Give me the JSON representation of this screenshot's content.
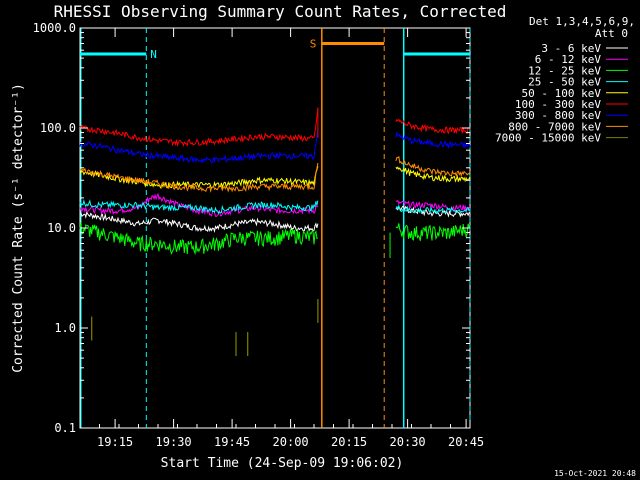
{
  "chart_data": {
    "type": "line",
    "title": "RHESSI Observing Summary Count Rates, Corrected",
    "xlabel": "Start Time (24-Sep-09 19:06:02)",
    "ylabel": "Corrected Count Rate (s⁻¹ detector⁻¹)",
    "yscale": "log",
    "ylim": [
      0.1,
      1000.0
    ],
    "xlim_minutes": [
      0.0,
      100.0
    ],
    "ytick_labels": [
      "0.1",
      "1.0",
      "10.0",
      "100.0",
      "1000.0"
    ],
    "ytick_values": [
      0.1,
      1.0,
      10.0,
      100.0,
      1000.0
    ],
    "xtick_labels": [
      "19:15",
      "19:30",
      "19:45",
      "20:00",
      "20:15",
      "20:30",
      "20:45"
    ],
    "xtick_minutes": [
      9,
      24,
      39,
      54,
      69,
      84,
      99
    ],
    "legend_header": "Det 1,3,4,5,6,9,",
    "legend_header2": "Att 0",
    "legend_position": "right",
    "series": [
      {
        "name": "3 - 6 keV",
        "color": "#ffffff",
        "seg1": [
          [
            0,
            14
          ],
          [
            5,
            13
          ],
          [
            10,
            12
          ],
          [
            15,
            11
          ],
          [
            20,
            12
          ],
          [
            25,
            11
          ],
          [
            30,
            10
          ],
          [
            35,
            10
          ],
          [
            40,
            11
          ],
          [
            45,
            11.5
          ],
          [
            50,
            11
          ],
          [
            55,
            10
          ],
          [
            60,
            10
          ],
          [
            61,
            11
          ]
        ],
        "seg2": [
          [
            81,
            16
          ],
          [
            85,
            15
          ],
          [
            90,
            14
          ],
          [
            95,
            14
          ],
          [
            100,
            14
          ]
        ]
      },
      {
        "name": "6 - 12 keV",
        "color": "#ff00ff",
        "seg1": [
          [
            0,
            16
          ],
          [
            5,
            15
          ],
          [
            10,
            15
          ],
          [
            15,
            16
          ],
          [
            18,
            20
          ],
          [
            20,
            21
          ],
          [
            25,
            17
          ],
          [
            30,
            15
          ],
          [
            35,
            14
          ],
          [
            40,
            15
          ],
          [
            45,
            16
          ],
          [
            50,
            15
          ],
          [
            55,
            15
          ],
          [
            60,
            15
          ],
          [
            61,
            17
          ]
        ],
        "seg2": [
          [
            81,
            18
          ],
          [
            85,
            17
          ],
          [
            90,
            17
          ],
          [
            95,
            16
          ],
          [
            100,
            16
          ]
        ]
      },
      {
        "name": "12 - 25 keV",
        "color": "#00ff00",
        "seg1": [
          [
            0,
            10
          ],
          [
            5,
            9
          ],
          [
            10,
            8
          ],
          [
            15,
            7
          ],
          [
            20,
            7
          ],
          [
            25,
            6.5
          ],
          [
            30,
            6.5
          ],
          [
            35,
            7
          ],
          [
            40,
            8
          ],
          [
            45,
            8
          ],
          [
            50,
            8
          ],
          [
            55,
            8.5
          ],
          [
            60,
            8
          ],
          [
            61,
            9
          ]
        ],
        "seg2": [
          [
            81,
            10
          ],
          [
            85,
            9
          ],
          [
            90,
            9
          ],
          [
            95,
            9
          ],
          [
            100,
            10
          ]
        ]
      },
      {
        "name": "25 - 50 keV",
        "color": "#00ffff",
        "seg1": [
          [
            0,
            18
          ],
          [
            5,
            17
          ],
          [
            10,
            17
          ],
          [
            15,
            17
          ],
          [
            20,
            16
          ],
          [
            25,
            16
          ],
          [
            30,
            16
          ],
          [
            35,
            15
          ],
          [
            40,
            16
          ],
          [
            45,
            17
          ],
          [
            50,
            17
          ],
          [
            55,
            16
          ],
          [
            60,
            16
          ],
          [
            61,
            19
          ]
        ],
        "seg2": [
          [
            81,
            16
          ],
          [
            85,
            15
          ],
          [
            90,
            15
          ],
          [
            95,
            15
          ],
          [
            100,
            15
          ]
        ]
      },
      {
        "name": "50 - 100 keV",
        "color": "#ffff00",
        "seg1": [
          [
            0,
            37
          ],
          [
            5,
            34
          ],
          [
            10,
            31
          ],
          [
            15,
            29
          ],
          [
            20,
            27
          ],
          [
            25,
            27
          ],
          [
            30,
            27
          ],
          [
            35,
            27
          ],
          [
            40,
            28
          ],
          [
            45,
            30
          ],
          [
            50,
            30
          ],
          [
            55,
            29
          ],
          [
            60,
            28
          ],
          [
            61,
            40
          ]
        ],
        "seg2": [
          [
            81,
            42
          ],
          [
            85,
            35
          ],
          [
            90,
            32
          ],
          [
            95,
            31
          ],
          [
            100,
            31
          ]
        ]
      },
      {
        "name": "100 - 300 keV",
        "color": "#ff0000",
        "seg1": [
          [
            0,
            100
          ],
          [
            5,
            95
          ],
          [
            10,
            88
          ],
          [
            15,
            80
          ],
          [
            20,
            75
          ],
          [
            25,
            72
          ],
          [
            30,
            72
          ],
          [
            35,
            74
          ],
          [
            40,
            78
          ],
          [
            45,
            82
          ],
          [
            50,
            82
          ],
          [
            55,
            80
          ],
          [
            60,
            78
          ],
          [
            61,
            150
          ]
        ],
        "seg2": [
          [
            81,
            120
          ],
          [
            85,
            105
          ],
          [
            90,
            97
          ],
          [
            95,
            95
          ],
          [
            100,
            95
          ]
        ]
      },
      {
        "name": "300 - 800 keV",
        "color": "#0000ff",
        "seg1": [
          [
            0,
            70
          ],
          [
            5,
            66
          ],
          [
            10,
            60
          ],
          [
            15,
            55
          ],
          [
            20,
            52
          ],
          [
            25,
            50
          ],
          [
            30,
            48
          ],
          [
            35,
            48
          ],
          [
            40,
            50
          ],
          [
            45,
            52
          ],
          [
            50,
            53
          ],
          [
            55,
            53
          ],
          [
            60,
            52
          ],
          [
            61,
            100
          ]
        ],
        "seg2": [
          [
            81,
            85
          ],
          [
            85,
            75
          ],
          [
            90,
            70
          ],
          [
            95,
            68
          ],
          [
            100,
            67
          ]
        ]
      },
      {
        "name": "800 - 7000 keV",
        "color": "#ff8c00",
        "seg1": [
          [
            0,
            38
          ],
          [
            5,
            35
          ],
          [
            10,
            32
          ],
          [
            15,
            30
          ],
          [
            20,
            28
          ],
          [
            25,
            26
          ],
          [
            30,
            25
          ],
          [
            35,
            25
          ],
          [
            40,
            25
          ],
          [
            45,
            26
          ],
          [
            50,
            26
          ],
          [
            55,
            26
          ],
          [
            60,
            26
          ],
          [
            61,
            45
          ]
        ],
        "seg2": [
          [
            81,
            50
          ],
          [
            85,
            42
          ],
          [
            90,
            37
          ],
          [
            95,
            35
          ],
          [
            100,
            35
          ]
        ]
      },
      {
        "name": "7000 - 15000 keV",
        "color": "#808000",
        "seg1": [],
        "seg2": []
      }
    ],
    "annotations": [
      {
        "label": "N",
        "color": "#00ffff",
        "bar_level": 550,
        "x_start": 0,
        "x_end": 17,
        "dashed_at": [
          17
        ]
      },
      {
        "label": "S",
        "color": "#ff8c00",
        "bar_level": 700,
        "x_start": 62,
        "x_end": 78,
        "solid_at": [
          62
        ],
        "dashed_at": [
          78
        ]
      },
      {
        "label": "",
        "color": "#00ffff",
        "bar_level": 550,
        "x_start": 83,
        "x_end": 100,
        "solid_at": [
          83
        ],
        "dashed_at": [
          100
        ]
      }
    ],
    "scatter_points": [
      {
        "x": 40,
        "y": 0.7,
        "color": "#808000"
      },
      {
        "x": 43,
        "y": 0.7,
        "color": "#808000"
      },
      {
        "x": 61,
        "y": 1.5,
        "color": "#808000"
      },
      {
        "x": 3,
        "y": 1.0,
        "color": "#808000"
      }
    ]
  },
  "footer": {
    "timestamp": "15-Oct-2021 20:48"
  }
}
